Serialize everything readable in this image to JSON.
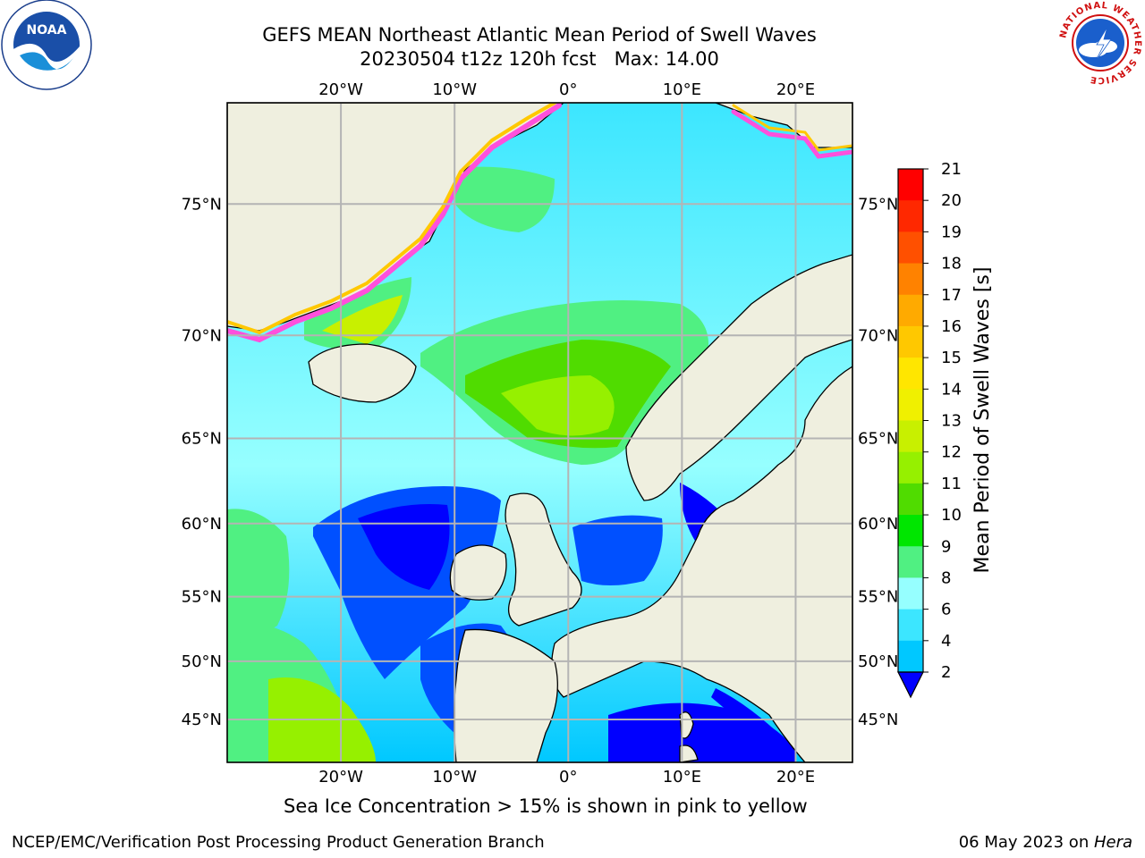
{
  "title": {
    "line1": "GEFS MEAN Northeast Atlantic Mean Period of Swell Waves",
    "line2": "20230504 t12z 120h fcst   Max: 14.00"
  },
  "map": {
    "lon_range": [
      -30,
      25
    ],
    "lat_range": [
      41,
      78
    ],
    "lon_ticks": [
      -20,
      -10,
      0,
      10,
      20
    ],
    "lat_ticks": [
      45,
      50,
      55,
      60,
      65,
      70,
      75
    ],
    "lon_tick_labels": [
      "20°W",
      "10°W",
      "0°",
      "10°E",
      "20°E"
    ],
    "lat_tick_labels": [
      "45°N",
      "50°N",
      "55°N",
      "60°N",
      "65°N",
      "70°N",
      "75°N"
    ],
    "colors": {
      "ocean_low": "#00c8ff",
      "land": "#efefdf",
      "grid": "#b4b4b4",
      "coast": "#000000"
    }
  },
  "colorbar": {
    "label": "Mean Period of Swell Waves [s]",
    "ticks": [
      "2",
      "4",
      "6",
      "8",
      "9",
      "10",
      "11",
      "12",
      "13",
      "14",
      "15",
      "16",
      "17",
      "18",
      "19",
      "20",
      "21"
    ],
    "colors": [
      "#0050ff",
      "#00c8ff",
      "#3ce6ff",
      "#96ffff",
      "#50f082",
      "#00e600",
      "#50dc00",
      "#96f000",
      "#c8f000",
      "#f0f000",
      "#ffe600",
      "#ffc800",
      "#ffaa00",
      "#ff8200",
      "#ff5000",
      "#ff2800",
      "#ff0000"
    ],
    "under_color": "#0000ff"
  },
  "ice_note": "Sea Ice Concentration > 15% is shown in pink to yellow",
  "footer": {
    "left": "NCEP/EMC/Verification Post Processing Product Generation Branch",
    "right_date": "06 May 2023 on ",
    "right_host": "Hera"
  },
  "logos": {
    "noaa_text": "NOAA",
    "nws_ring_text": "NATIONAL WEATHER SERVICE"
  }
}
